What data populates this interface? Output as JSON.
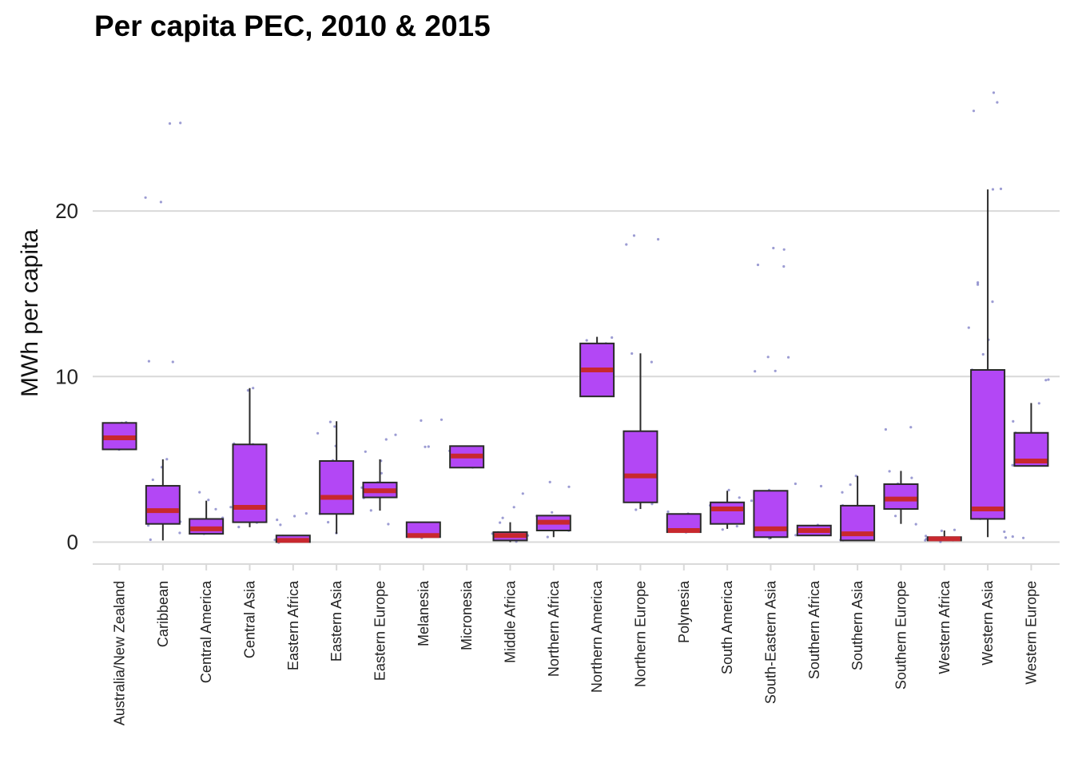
{
  "chart_data": {
    "type": "box",
    "title": "Per capita PEC, 2010 & 2015",
    "xlabel": "",
    "ylabel": "MWh per capita",
    "ylim": [
      -1.3,
      28
    ],
    "yticks": [
      0,
      10,
      20
    ],
    "grid": "horizontal",
    "legend": "none",
    "colors": {
      "box_fill": "#b347f5",
      "box_stroke": "#2a2a2a",
      "median": "#c8282e",
      "points": "#3a3aa8",
      "gridline": "#d9d9d9"
    },
    "categories": [
      "Australia/New Zealand",
      "Caribbean",
      "Central America",
      "Central Asia",
      "Eastern Africa",
      "Eastern Asia",
      "Eastern Europe",
      "Melanesia",
      "Micronesia",
      "Middle Africa",
      "Northern Africa",
      "Northern America",
      "Northern Europe",
      "Polynesia",
      "South America",
      "South-Eastern Asia",
      "Southern Africa",
      "Southern Asia",
      "Southern Europe",
      "Western Africa",
      "Western Asia",
      "Western Europe"
    ],
    "boxes": [
      {
        "min": 5.6,
        "q1": 5.6,
        "median": 6.3,
        "q3": 7.2,
        "max": 7.2,
        "outliers": []
      },
      {
        "min": 0.1,
        "q1": 1.1,
        "median": 1.9,
        "q3": 3.4,
        "max": 5.0,
        "outliers": [
          10.9,
          20.5,
          20.8,
          25.3
        ]
      },
      {
        "min": 0.5,
        "q1": 0.5,
        "median": 0.8,
        "q3": 1.4,
        "max": 2.5,
        "outliers": []
      },
      {
        "min": 0.9,
        "q1": 1.2,
        "median": 2.1,
        "q3": 5.9,
        "max": 9.3,
        "outliers": []
      },
      {
        "min": 0.0,
        "q1": 0.0,
        "median": 0.1,
        "q3": 0.4,
        "max": 0.4,
        "outliers": [
          1.0,
          1.6
        ]
      },
      {
        "min": 0.5,
        "q1": 1.7,
        "median": 2.7,
        "q3": 4.9,
        "max": 7.3,
        "outliers": []
      },
      {
        "min": 1.9,
        "q1": 2.7,
        "median": 3.1,
        "q3": 3.6,
        "max": 5.0,
        "outliers": [
          1.1,
          6.5
        ]
      },
      {
        "min": 0.3,
        "q1": 0.3,
        "median": 0.4,
        "q3": 1.2,
        "max": 1.2,
        "outliers": [
          5.8,
          7.3
        ]
      },
      {
        "min": 4.5,
        "q1": 4.5,
        "median": 5.2,
        "q3": 5.8,
        "max": 5.8,
        "outliers": []
      },
      {
        "min": 0.0,
        "q1": 0.1,
        "median": 0.4,
        "q3": 0.6,
        "max": 1.2,
        "outliers": [
          2.1,
          2.9
        ]
      },
      {
        "min": 0.3,
        "q1": 0.7,
        "median": 1.2,
        "q3": 1.6,
        "max": 1.6,
        "outliers": [
          3.4
        ]
      },
      {
        "min": 8.8,
        "q1": 8.8,
        "median": 10.4,
        "q3": 12.0,
        "max": 12.4,
        "outliers": []
      },
      {
        "min": 2.0,
        "q1": 2.4,
        "median": 4.0,
        "q3": 6.7,
        "max": 11.4,
        "outliers": [
          18.0,
          18.4
        ]
      },
      {
        "min": 0.6,
        "q1": 0.6,
        "median": 0.7,
        "q3": 1.7,
        "max": 1.7,
        "outliers": []
      },
      {
        "min": 0.8,
        "q1": 1.1,
        "median": 2.0,
        "q3": 2.4,
        "max": 3.1,
        "outliers": []
      },
      {
        "min": 0.2,
        "q1": 0.3,
        "median": 0.8,
        "q3": 3.1,
        "max": 3.1,
        "outliers": [
          10.3,
          11.2,
          16.7,
          17.7
        ]
      },
      {
        "min": 0.4,
        "q1": 0.4,
        "median": 0.7,
        "q3": 1.0,
        "max": 1.0,
        "outliers": [
          3.4
        ]
      },
      {
        "min": 0.1,
        "q1": 0.1,
        "median": 0.5,
        "q3": 2.2,
        "max": 4.0,
        "outliers": []
      },
      {
        "min": 1.1,
        "q1": 2.0,
        "median": 2.6,
        "q3": 3.5,
        "max": 4.3,
        "outliers": [
          6.8
        ]
      },
      {
        "min": 0.1,
        "q1": 0.1,
        "median": 0.2,
        "q3": 0.3,
        "max": 0.7,
        "outliers": []
      },
      {
        "min": 0.3,
        "q1": 1.4,
        "median": 2.0,
        "q3": 10.4,
        "max": 21.3,
        "outliers": [
          26.0,
          26.6,
          27.1
        ]
      },
      {
        "min": 4.6,
        "q1": 4.6,
        "median": 4.9,
        "q3": 6.6,
        "max": 8.4,
        "outliers": [
          0.3,
          9.8
        ]
      }
    ],
    "points_per_category": [
      [
        5.6,
        5.7,
        6.0,
        6.3,
        6.4,
        6.8,
        7.0,
        7.1,
        7.2,
        7.2
      ],
      [
        0.1,
        0.6,
        1.0,
        1.2,
        1.4,
        1.7,
        1.9,
        2.0,
        2.3,
        2.6,
        3.0,
        3.4,
        3.8,
        4.5,
        5.0,
        10.9,
        10.9,
        20.5,
        20.8,
        25.3,
        25.3
      ],
      [
        0.5,
        0.6,
        0.7,
        0.8,
        0.9,
        1.1,
        1.3,
        1.5,
        2.0,
        2.5,
        3.0
      ],
      [
        0.9,
        1.2,
        1.8,
        2.1,
        5.9,
        6.0,
        9.2,
        9.3
      ],
      [
        0.0,
        0.1,
        0.1,
        0.2,
        0.3,
        0.4,
        1.0,
        1.3,
        1.6,
        1.7
      ],
      [
        0.5,
        1.2,
        1.7,
        2.3,
        2.7,
        3.4,
        4.2,
        4.9,
        5.8,
        6.6,
        7.0,
        7.3
      ],
      [
        1.1,
        1.9,
        2.7,
        2.9,
        3.1,
        3.3,
        3.6,
        4.2,
        4.9,
        5.5,
        6.2,
        6.5
      ],
      [
        0.3,
        0.4,
        0.5,
        1.2,
        5.8,
        5.8,
        7.3,
        7.4
      ],
      [
        4.5,
        4.6,
        5.0,
        5.2,
        5.5,
        5.8
      ],
      [
        0.0,
        0.1,
        0.2,
        0.3,
        0.4,
        0.5,
        0.6,
        1.2,
        1.5,
        2.1,
        2.9
      ],
      [
        0.3,
        0.7,
        0.9,
        1.1,
        1.2,
        1.4,
        1.6,
        1.8,
        3.3,
        3.6
      ],
      [
        8.8,
        8.9,
        9.5,
        10.4,
        11.2,
        12.0,
        12.2,
        12.4
      ],
      [
        2.0,
        2.3,
        2.8,
        3.6,
        4.0,
        4.8,
        5.8,
        6.6,
        10.9,
        11.4,
        18.0,
        18.3,
        18.5
      ],
      [
        0.6,
        0.7,
        0.9,
        1.4,
        1.7,
        1.8
      ],
      [
        0.8,
        1.0,
        1.2,
        1.5,
        1.8,
        2.0,
        2.2,
        2.4,
        2.7,
        3.1
      ],
      [
        0.2,
        0.3,
        0.5,
        0.8,
        1.1,
        1.8,
        2.5,
        3.1,
        10.3,
        10.3,
        11.2,
        11.2,
        16.7,
        16.7,
        17.7,
        17.8
      ],
      [
        0.4,
        0.6,
        0.7,
        0.8,
        1.0,
        3.4,
        3.5
      ],
      [
        0.1,
        0.1,
        0.2,
        0.4,
        0.6,
        1.2,
        1.8,
        2.2,
        3.0,
        3.5,
        4.0
      ],
      [
        1.1,
        1.6,
        2.0,
        2.3,
        2.6,
        2.9,
        3.2,
        3.5,
        3.9,
        4.3,
        6.8,
        6.9
      ],
      [
        0.0,
        0.1,
        0.1,
        0.2,
        0.3,
        0.4,
        0.7,
        0.7
      ],
      [
        0.3,
        0.6,
        1.4,
        1.9,
        2.4,
        3.6,
        5.5,
        8.0,
        9.0,
        10.4,
        11.3,
        12.2,
        13.0,
        14.5,
        15.6,
        15.7,
        21.3,
        21.3,
        26.0,
        26.6,
        27.1
      ],
      [
        0.3,
        0.3,
        4.6,
        4.7,
        4.9,
        5.5,
        6.6,
        7.3,
        8.4,
        9.8,
        9.8
      ]
    ]
  }
}
